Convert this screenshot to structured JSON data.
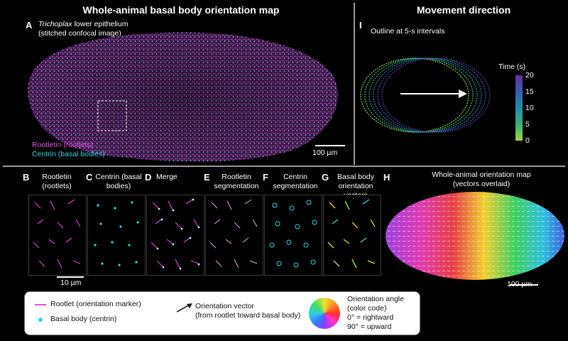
{
  "titles": {
    "left": "Whole-animal basal body orientation map",
    "right": "Movement direction"
  },
  "panel_a": {
    "letter": "A",
    "line1_italic": "Trichoplax",
    "line1_rest": " lower epithelium",
    "line2": "(stitched confocal image)",
    "legend_rootletin": "Rootletin (rootlets)",
    "legend_centrin": "Centrin (basal bodies)",
    "scalebar": "100 µm"
  },
  "panel_i": {
    "letter": "I",
    "caption": "Outline at 5-s intervals",
    "colorbar_title": "Time (s)",
    "ticks": [
      "20",
      "15",
      "10",
      "5",
      "0"
    ]
  },
  "small_panels": [
    {
      "letter": "B",
      "label": "Rootletin (rootlets)"
    },
    {
      "letter": "C",
      "label": "Centrin (basal bodies)"
    },
    {
      "letter": "D",
      "label": "Merge"
    },
    {
      "letter": "E",
      "label": "Rootletin segmentation"
    },
    {
      "letter": "F",
      "label": "Centrin segmentation"
    },
    {
      "letter": "G",
      "label": "Basal body orientation vectors"
    }
  ],
  "small_scalebar": "10 µm",
  "panel_h": {
    "letter": "H",
    "line1": "Whole-animal orientation map",
    "line2": "(vectors overlaid)",
    "scalebar": "100 µm"
  },
  "legend": {
    "rootlet": "Rootlet (orientation marker)",
    "basal_body": "Basal body (centrin)",
    "vector_line1": "Orientation vector",
    "vector_line2": "(from rootlet toward basal body)",
    "angle_line1": "Orientation angle",
    "angle_line2": "(color code)",
    "angle_line3": "0° = rightward",
    "angle_line4": "90° = upward"
  },
  "colors": {
    "rootletin": "#e24fe0",
    "centrin": "#33d6e4"
  }
}
